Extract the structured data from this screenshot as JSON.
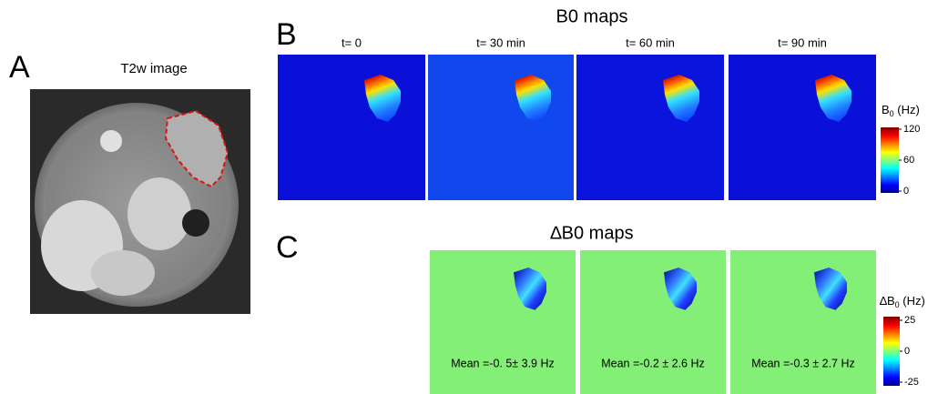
{
  "panel_a": {
    "letter": "A",
    "title": "T2w image"
  },
  "panel_b": {
    "letter": "B",
    "title": "B0 maps",
    "panels": [
      {
        "label": "t= 0"
      },
      {
        "label": "t= 30 min"
      },
      {
        "label": "t= 60 min"
      },
      {
        "label": "t= 90 min"
      }
    ],
    "colorbar": {
      "label": "B",
      "label_sub": "0",
      "label_unit": " (Hz)",
      "lim": [
        0,
        120
      ],
      "ticks": [
        0,
        60,
        120
      ]
    }
  },
  "panel_c": {
    "letter": "C",
    "title": "∆B0 maps",
    "panels": [
      {
        "mean": "Mean =-0. 5± 3.9 Hz"
      },
      {
        "mean": "Mean =-0.2 ± 2.6 Hz"
      },
      {
        "mean": "Mean =-0.3 ± 2.7 Hz"
      }
    ],
    "colorbar": {
      "label": "∆B",
      "label_sub": "0",
      "label_unit": " (Hz)",
      "lim": [
        -25,
        25
      ],
      "ticks": [
        -25,
        0,
        25
      ]
    }
  }
}
